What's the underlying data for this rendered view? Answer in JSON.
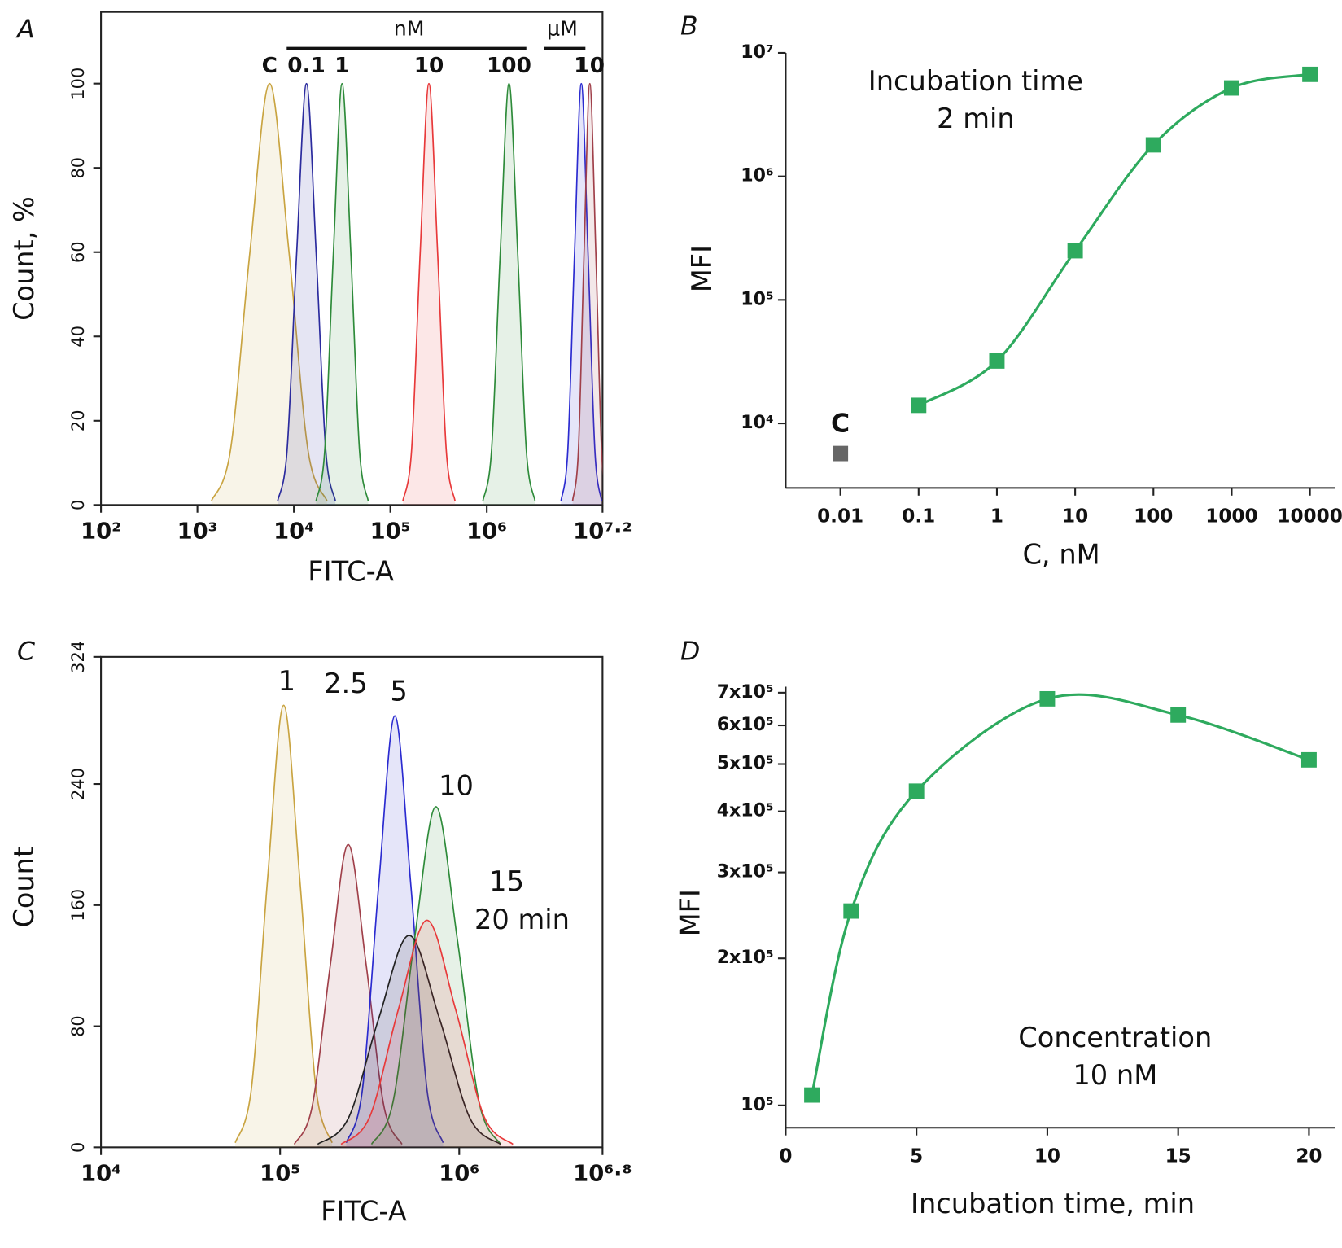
{
  "chart_data": [
    {
      "type": "area",
      "panel_label": "A",
      "xlabel": "FITC-A",
      "ylabel": "Count, %",
      "xscale": "log",
      "xlim": [
        100,
        15849000
      ],
      "ylim": [
        0,
        117
      ],
      "xticks": [
        {
          "value": 100,
          "label": "10²"
        },
        {
          "value": 1000,
          "label": "10³"
        },
        {
          "value": 10000,
          "label": "10⁴"
        },
        {
          "value": 100000,
          "label": "10⁵"
        },
        {
          "value": 1000000,
          "label": "10⁶"
        },
        {
          "value": 15849000,
          "label": "10⁷·²"
        }
      ],
      "yticks": [
        0,
        20,
        40,
        60,
        80,
        100
      ],
      "unit_labels": [
        "nM",
        "μM"
      ],
      "series": [
        {
          "name": "C",
          "color": "#c9a441",
          "x": [
            1400,
            2200,
            3500,
            5600,
            8900,
            14000,
            22000
          ],
          "values": [
            1,
            13,
            60,
            100,
            60,
            13,
            1
          ]
        },
        {
          "name": "0.1",
          "color": "#2b2b9e",
          "x": [
            6800,
            8500,
            10700,
            13500,
            17000,
            21400,
            26900
          ],
          "values": [
            1,
            13,
            60,
            100,
            60,
            13,
            1
          ]
        },
        {
          "name": "1",
          "color": "#2e8b3a",
          "x": [
            17000,
            20900,
            25700,
            31600,
            38900,
            47900,
            58900
          ],
          "values": [
            1,
            13,
            60,
            100,
            60,
            13,
            1
          ]
        },
        {
          "name": "10",
          "color": "#e8393a",
          "x": [
            135000,
            166000,
            204000,
            251000,
            309000,
            380000,
            468000
          ],
          "values": [
            1,
            13,
            60,
            100,
            60,
            13,
            1
          ]
        },
        {
          "name": "100",
          "color": "#2e8b3a",
          "x": [
            912000,
            1120000,
            1380000,
            1700000,
            2090000,
            2570000,
            3160000
          ],
          "values": [
            1,
            13,
            60,
            100,
            60,
            13,
            1
          ]
        },
        {
          "name": "1",
          "color": "#2b2bd0",
          "x": [
            5890000,
            6920000,
            8130000,
            9550000,
            11200000,
            13200000,
            15500000
          ],
          "values": [
            1,
            13,
            60,
            100,
            60,
            13,
            1
          ]
        },
        {
          "name": "10",
          "color": "#a0404a",
          "x": [
            7760000,
            8910000,
            10200000,
            11700000,
            13500000,
            15500000,
            17800000
          ],
          "values": [
            1,
            13,
            60,
            100,
            60,
            13,
            1
          ]
        }
      ]
    },
    {
      "type": "line",
      "panel_label": "B",
      "xlabel": "C, nM",
      "ylabel": "MFI",
      "xscale": "log",
      "yscale": "log",
      "xlim": [
        0.002,
        21000
      ],
      "ylim": [
        3000,
        10000000
      ],
      "xticks": [
        0.01,
        0.1,
        1,
        10,
        100,
        1000,
        10000
      ],
      "yticks": [
        {
          "value": 10000,
          "label": "10⁴"
        },
        {
          "value": 100000,
          "label": "10⁵"
        },
        {
          "value": 1000000,
          "label": "10⁶"
        },
        {
          "value": 10000000,
          "label": "10⁷"
        }
      ],
      "annotation": [
        "Incubation time",
        "2 min"
      ],
      "series": [
        {
          "color": "#2eaa5e",
          "x": [
            0.1,
            1,
            10,
            100,
            1000,
            10000
          ],
          "values": [
            14000,
            32000,
            250000,
            1800000,
            5200000,
            6700000
          ]
        },
        {
          "name": "C",
          "color": "#666666",
          "x": [
            0.01
          ],
          "values": [
            5700
          ]
        }
      ]
    },
    {
      "type": "area",
      "panel_label": "C",
      "xlabel": "FITC-A",
      "ylabel": "Count",
      "xscale": "log",
      "xlim": [
        10000,
        6310000
      ],
      "ylim": [
        0,
        324
      ],
      "xticks": [
        {
          "value": 10000,
          "label": "10⁴"
        },
        {
          "value": 100000,
          "label": "10⁵"
        },
        {
          "value": 1000000,
          "label": "10⁶"
        },
        {
          "value": 6310000,
          "label": "10⁶·⁸"
        }
      ],
      "yticks": [
        0,
        80,
        160,
        240,
        324
      ],
      "series": [
        {
          "name": "1",
          "color": "#c9a441",
          "x": [
            56200,
            69200,
            85100,
            104700,
            128800,
            158500,
            195000
          ],
          "values": [
            3,
            39,
            177,
            292,
            177,
            39,
            3
          ]
        },
        {
          "name": "2.5",
          "color": "#a0404a",
          "x": [
            120000,
            151000,
            191000,
            240000,
            302000,
            380000,
            479000
          ],
          "values": [
            2,
            27,
            121,
            200,
            121,
            27,
            2
          ]
        },
        {
          "name": "5",
          "color": "#2b2bd0",
          "x": [
            234000,
            288000,
            355000,
            437000,
            537000,
            661000,
            813000
          ],
          "values": [
            3,
            38,
            173,
            285,
            173,
            38,
            3
          ]
        },
        {
          "name": "10",
          "color": "#2e8b3a",
          "x": [
            324000,
            427000,
            562000,
            741000,
            977000,
            1290000,
            1700000
          ],
          "values": [
            2,
            30,
            137,
            225,
            137,
            30,
            2
          ]
        },
        {
          "name": "15",
          "color": "#222222",
          "x": [
            162000,
            240000,
            355000,
            525000,
            776000,
            1150000,
            1700000
          ],
          "values": [
            2,
            19,
            85,
            140,
            85,
            19,
            2
          ]
        },
        {
          "name": "20 min",
          "color": "#e8393a",
          "x": [
            219000,
            316000,
            457000,
            661000,
            955000,
            1380000,
            1995000
          ],
          "values": [
            2,
            20,
            91,
            150,
            91,
            20,
            2
          ]
        }
      ]
    },
    {
      "type": "line",
      "panel_label": "D",
      "xlabel": "Incubation time, min",
      "ylabel": "MFI",
      "yscale": "log",
      "xlim": [
        0,
        21
      ],
      "ylim": [
        90000,
        720000
      ],
      "xticks": [
        0,
        5,
        10,
        15,
        20
      ],
      "yticks": [
        {
          "value": 100000,
          "label": "10⁵"
        },
        {
          "value": 200000,
          "label": "2x10⁵"
        },
        {
          "value": 300000,
          "label": "3x10⁵"
        },
        {
          "value": 400000,
          "label": "4x10⁵"
        },
        {
          "value": 500000,
          "label": "5x10⁵"
        },
        {
          "value": 600000,
          "label": "6x10⁵"
        },
        {
          "value": 700000,
          "label": "7x10⁵"
        }
      ],
      "annotation": [
        "Concentration",
        "10 nM"
      ],
      "series": [
        {
          "color": "#2eaa5e",
          "x": [
            1,
            2.5,
            5,
            10,
            15,
            20
          ],
          "values": [
            105000,
            250000,
            440000,
            680000,
            630000,
            510000
          ]
        }
      ]
    }
  ]
}
